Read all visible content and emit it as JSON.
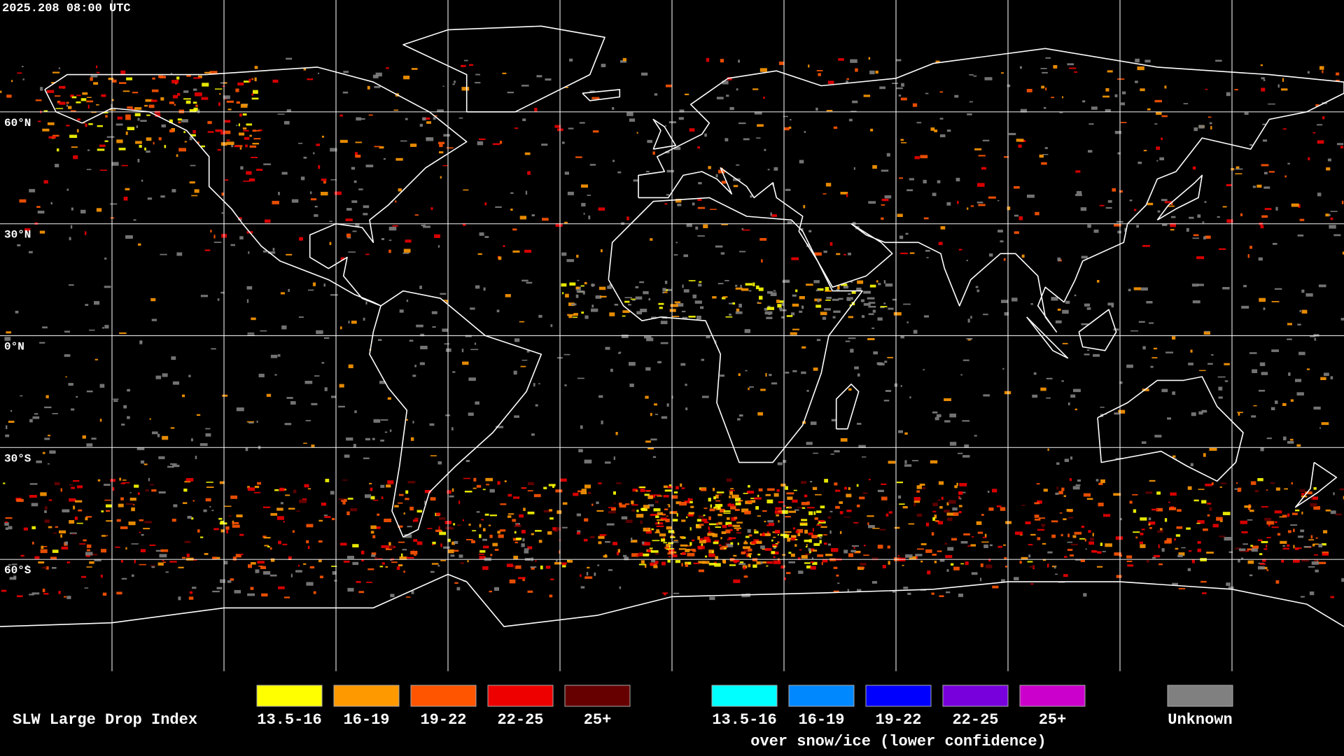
{
  "header": {
    "timestamp": "2025.208 08:00 UTC"
  },
  "map": {
    "projection": "equirectangular",
    "xlim": [
      -180,
      180
    ],
    "ylim": [
      -90,
      90
    ],
    "parallels": [
      {
        "value": 60,
        "label": "60°N"
      },
      {
        "value": 30,
        "label": "30°N"
      },
      {
        "value": 0,
        "label": "0°N"
      },
      {
        "value": -30,
        "label": "30°S"
      },
      {
        "value": -60,
        "label": "60°S"
      }
    ],
    "meridians": [
      -150,
      -120,
      -90,
      -60,
      -30,
      0,
      30,
      60,
      90,
      120,
      150
    ]
  },
  "legend": {
    "title": "SLW Large Drop Index",
    "groups": [
      {
        "items": [
          {
            "label": "13.5-16",
            "color": "#ffff00"
          },
          {
            "label": "16-19",
            "color": "#ff9900"
          },
          {
            "label": "19-22",
            "color": "#ff5500"
          },
          {
            "label": "22-25",
            "color": "#ee0000"
          },
          {
            "label": "25+",
            "color": "#660000"
          }
        ]
      },
      {
        "caption": "over snow/ice (lower confidence)",
        "items": [
          {
            "label": "13.5-16",
            "color": "#00ffff"
          },
          {
            "label": "16-19",
            "color": "#0088ff"
          },
          {
            "label": "19-22",
            "color": "#0000ff"
          },
          {
            "label": "22-25",
            "color": "#7700dd"
          },
          {
            "label": "25+",
            "color": "#cc00cc"
          }
        ]
      },
      {
        "items": [
          {
            "label": "Unknown",
            "color": "#808080"
          }
        ]
      }
    ]
  }
}
